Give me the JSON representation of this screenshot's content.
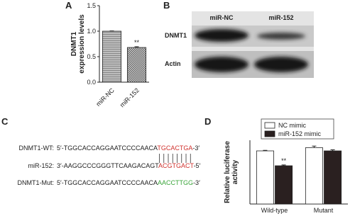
{
  "panel_labels": [
    "A",
    "B",
    "C",
    "D"
  ],
  "chart_data": [
    {
      "type": "bar",
      "ylabel": [
        "DNMT1",
        "expression levels"
      ],
      "categories": [
        "miR-NC",
        "miR-152"
      ],
      "values": [
        1.0,
        0.68
      ],
      "errors": [
        0.005,
        0.015
      ],
      "significance": [
        null,
        "**"
      ],
      "patterns": [
        "horizontal",
        "checker"
      ],
      "ylim": [
        0,
        1.5
      ],
      "yticks": [
        {
          "value": 0,
          "label": "0.0"
        },
        {
          "value": 0.5,
          "label": "0.5"
        },
        {
          "value": 1,
          "label": "1.0"
        },
        {
          "value": 1.5,
          "label": "1.5"
        }
      ],
      "xtick_rotation": -45
    },
    {
      "type": "bar",
      "ylabel": [
        "Relative luciferase",
        "activity"
      ],
      "categories": [
        "Wild-type",
        "Mutant"
      ],
      "series": [
        {
          "name": "NC mimic",
          "color": "#ffffff",
          "values": [
            1.0,
            1.06
          ],
          "errors": [
            0.01,
            0.03
          ],
          "significance": [
            null,
            null
          ]
        },
        {
          "name": "miR-152 mimic",
          "color": "#2a2020",
          "values": [
            0.72,
            1.0
          ],
          "errors": [
            0.015,
            0.02
          ],
          "significance": [
            "**",
            null
          ]
        }
      ],
      "ylim": [
        0,
        1.2
      ],
      "legend": "top",
      "xtick_rotation": 0
    }
  ],
  "blot": {
    "columns": [
      "miR-NC",
      "miR-152"
    ],
    "rows": [
      "DNMT1",
      "Actin"
    ]
  },
  "alignment": {
    "rows": [
      {
        "label": "DNMT1-WT:",
        "seq": "5′-TGGCACCAGGAATCCCCAACA",
        "site": "TGCACTGA",
        "end": "-3′",
        "site_color": "#d0312d"
      },
      {
        "label": "miR-152:",
        "seq": "3′-AAGGCCCGGGTTCAAGACAGT",
        "site": "ACGTGACT",
        "end": "-5′",
        "site_color": "#d0312d"
      },
      {
        "label": "DNMT1-Mut:",
        "seq": "5′-TGGCACCAGGAATCCCCAACA",
        "site": "AACCTTGG",
        "end": "-3′",
        "site_color": "#3aa53a"
      }
    ]
  }
}
